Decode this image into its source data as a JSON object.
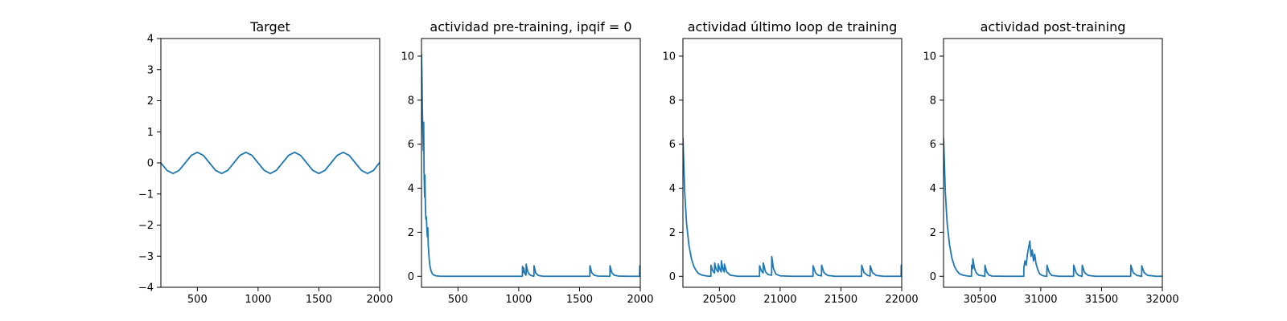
{
  "chart_data": [
    {
      "type": "line",
      "title": "Target",
      "xlabel": "",
      "ylabel": "",
      "xlim": [
        200,
        2000
      ],
      "ylim": [
        -4,
        4
      ],
      "xticks": [
        500,
        1000,
        1500,
        2000
      ],
      "yticks": [
        -4,
        -3,
        -2,
        -1,
        0,
        1,
        2,
        3,
        4
      ],
      "grid": false,
      "legend": "none",
      "series": [
        {
          "x": [
            200,
            250,
            300,
            350,
            400,
            450,
            500,
            550,
            600,
            650,
            700,
            750,
            800,
            850,
            900,
            950,
            1000,
            1050,
            1100,
            1150,
            1200,
            1250,
            1300,
            1350,
            1400,
            1450,
            1500,
            1550,
            1600,
            1650,
            1700,
            1750,
            1800,
            1850,
            1900,
            1950,
            2000
          ],
          "y": [
            0.0,
            -0.24,
            -0.34,
            -0.24,
            0.0,
            0.24,
            0.34,
            0.24,
            0.0,
            -0.24,
            -0.34,
            -0.24,
            0.0,
            0.24,
            0.34,
            0.24,
            0.0,
            -0.24,
            -0.34,
            -0.24,
            0.0,
            0.24,
            0.34,
            0.24,
            0.0,
            -0.24,
            -0.34,
            -0.24,
            0.0,
            0.24,
            0.34,
            0.24,
            0.0,
            -0.24,
            -0.34,
            -0.24,
            0.02
          ]
        }
      ]
    },
    {
      "type": "line",
      "title": "actividad pre-training, ipqif = 0",
      "xlabel": "",
      "ylabel": "",
      "xlim": [
        200,
        2000
      ],
      "ylim": [
        -0.5,
        10.8
      ],
      "xticks": [
        500,
        1000,
        1500,
        2000
      ],
      "yticks": [
        0,
        2,
        4,
        6,
        8,
        10
      ],
      "grid": false,
      "legend": "none",
      "series": [
        {
          "x": [
            200,
            203,
            207,
            211,
            215,
            218,
            222,
            226,
            228,
            232,
            236,
            240,
            244,
            248,
            252,
            255,
            259,
            263,
            270,
            280,
            290,
            300,
            320,
            340,
            360,
            400,
            500,
            700,
            900,
            1030,
            1031,
            1040,
            1041,
            1050,
            1060,
            1061,
            1075,
            1090,
            1110,
            1125,
            1126,
            1140,
            1160,
            1200,
            1400,
            1585,
            1586,
            1600,
            1620,
            1650,
            1750,
            1751,
            1765,
            1785,
            1820,
            1900,
            1995,
            1996,
            2000
          ],
          "y": [
            10.1,
            9.3,
            7.6,
            6.5,
            5.7,
            7.0,
            4.5,
            3.6,
            4.6,
            3.2,
            2.6,
            2.7,
            2.2,
            1.8,
            2.2,
            1.5,
            1.1,
            0.8,
            0.45,
            0.22,
            0.11,
            0.06,
            0.02,
            0.01,
            0.0,
            0.0,
            0.0,
            0.0,
            0.0,
            0.0,
            0.45,
            0.18,
            0.38,
            0.12,
            0.05,
            0.55,
            0.2,
            0.07,
            0.02,
            0.0,
            0.48,
            0.15,
            0.04,
            0.0,
            0.0,
            0.0,
            0.48,
            0.17,
            0.05,
            0.01,
            0.0,
            0.48,
            0.17,
            0.05,
            0.01,
            0.0,
            0.0,
            0.48,
            0.35
          ]
        }
      ]
    },
    {
      "type": "line",
      "title": "actividad último loop de training",
      "xlabel": "",
      "ylabel": "",
      "xlim": [
        20200,
        22000
      ],
      "ylim": [
        -0.5,
        10.8
      ],
      "xticks": [
        20500,
        21000,
        21500,
        22000
      ],
      "yticks": [
        0,
        2,
        4,
        6,
        8,
        10
      ],
      "grid": false,
      "legend": "none",
      "series": [
        {
          "x": [
            20200,
            20215,
            20230,
            20250,
            20270,
            20290,
            20310,
            20330,
            20360,
            20400,
            20430,
            20431,
            20445,
            20460,
            20461,
            20475,
            20490,
            20491,
            20505,
            20515,
            20516,
            20530,
            20540,
            20541,
            20560,
            20590,
            20650,
            20800,
            20830,
            20831,
            20845,
            20860,
            20861,
            20880,
            20900,
            20930,
            20931,
            20945,
            20965,
            21000,
            21100,
            21200,
            21270,
            21271,
            21290,
            21310,
            21340,
            21341,
            21360,
            21390,
            21450,
            21600,
            21670,
            21671,
            21690,
            21720,
            21740,
            21741,
            21760,
            21790,
            21850,
            21995,
            21996,
            22000
          ],
          "y": [
            6.3,
            3.8,
            2.4,
            1.4,
            0.8,
            0.45,
            0.25,
            0.12,
            0.05,
            0.01,
            0.0,
            0.5,
            0.25,
            0.15,
            0.6,
            0.3,
            0.2,
            0.55,
            0.3,
            0.2,
            0.7,
            0.3,
            0.2,
            0.55,
            0.2,
            0.05,
            0.0,
            0.0,
            0.0,
            0.48,
            0.25,
            0.15,
            0.6,
            0.2,
            0.08,
            0.05,
            0.9,
            0.35,
            0.1,
            0.02,
            0.0,
            0.0,
            0.0,
            0.48,
            0.17,
            0.05,
            0.02,
            0.5,
            0.17,
            0.04,
            0.0,
            0.0,
            0.0,
            0.5,
            0.17,
            0.04,
            0.01,
            0.48,
            0.17,
            0.04,
            0.0,
            0.0,
            0.5,
            0.4
          ]
        }
      ]
    },
    {
      "type": "line",
      "title": "actividad post-training",
      "xlabel": "",
      "ylabel": "",
      "xlim": [
        30200,
        32000
      ],
      "ylim": [
        -0.5,
        10.8
      ],
      "xticks": [
        30500,
        31000,
        31500,
        32000
      ],
      "yticks": [
        0,
        2,
        4,
        6,
        8,
        10
      ],
      "grid": false,
      "legend": "none",
      "series": [
        {
          "x": [
            30200,
            30215,
            30230,
            30250,
            30270,
            30290,
            30310,
            30330,
            30360,
            30400,
            30430,
            30431,
            30440,
            30441,
            30455,
            30470,
            30490,
            30540,
            30541,
            30555,
            30575,
            30600,
            30700,
            30860,
            30861,
            30870,
            30880,
            30890,
            30900,
            30910,
            30920,
            30930,
            30940,
            30950,
            30960,
            30975,
            30990,
            31010,
            31030,
            31050,
            31051,
            31070,
            31090,
            31150,
            31270,
            31271,
            31290,
            31310,
            31340,
            31341,
            31360,
            31390,
            31450,
            31600,
            31740,
            31741,
            31760,
            31790,
            31830,
            31831,
            31850,
            31880,
            31950,
            32000
          ],
          "y": [
            6.3,
            3.8,
            2.4,
            1.4,
            0.8,
            0.45,
            0.25,
            0.12,
            0.05,
            0.01,
            0.0,
            0.5,
            0.35,
            0.8,
            0.35,
            0.15,
            0.05,
            0.0,
            0.5,
            0.2,
            0.05,
            0.01,
            0.0,
            0.0,
            0.4,
            0.7,
            0.5,
            1.0,
            1.3,
            1.6,
            0.9,
            1.2,
            0.7,
            1.0,
            0.6,
            0.3,
            0.12,
            0.04,
            0.01,
            0.0,
            0.5,
            0.17,
            0.04,
            0.0,
            0.0,
            0.5,
            0.17,
            0.04,
            0.0,
            0.5,
            0.17,
            0.04,
            0.0,
            0.0,
            0.0,
            0.5,
            0.17,
            0.04,
            0.0,
            0.48,
            0.17,
            0.04,
            0.0,
            0.0
          ]
        }
      ]
    }
  ]
}
